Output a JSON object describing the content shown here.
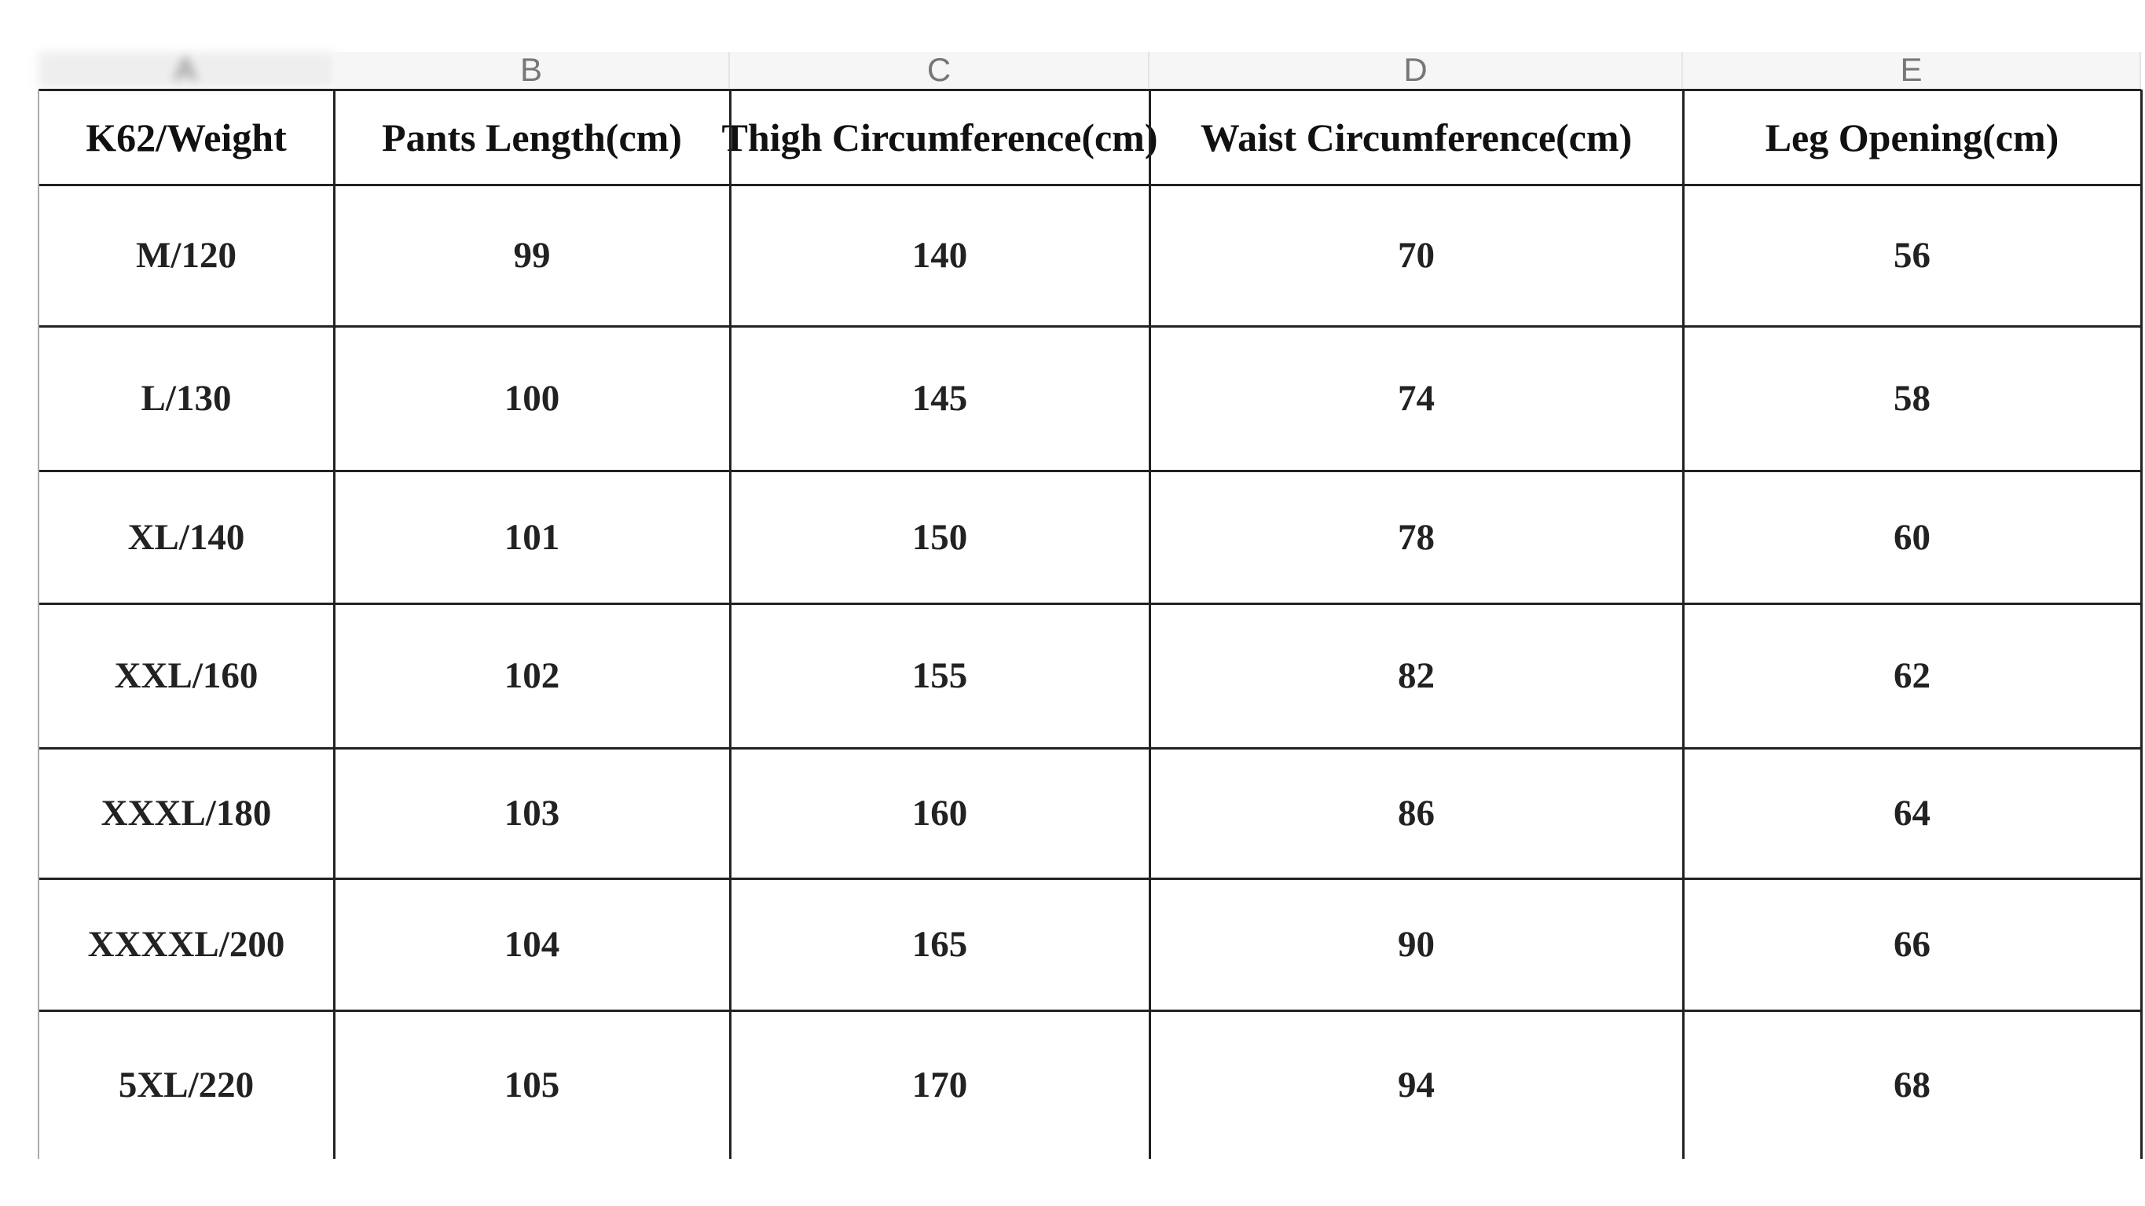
{
  "column_letters": [
    "A",
    "B",
    "C",
    "D",
    "E"
  ],
  "table": {
    "headers": [
      "K62/Weight",
      "Pants Length(cm)",
      "Thigh Circumference(cm)",
      "Waist Circumference(cm)",
      "Leg Opening(cm)"
    ],
    "rows": [
      [
        "M/120",
        99,
        140,
        70,
        56
      ],
      [
        "L/130",
        100,
        145,
        74,
        58
      ],
      [
        "XL/140",
        101,
        150,
        78,
        60
      ],
      [
        "XXL/160",
        102,
        155,
        82,
        62
      ],
      [
        "XXXL/180",
        103,
        160,
        86,
        64
      ],
      [
        "XXXXL/200",
        104,
        165,
        90,
        66
      ],
      [
        "5XL/220",
        105,
        170,
        94,
        68
      ]
    ]
  }
}
